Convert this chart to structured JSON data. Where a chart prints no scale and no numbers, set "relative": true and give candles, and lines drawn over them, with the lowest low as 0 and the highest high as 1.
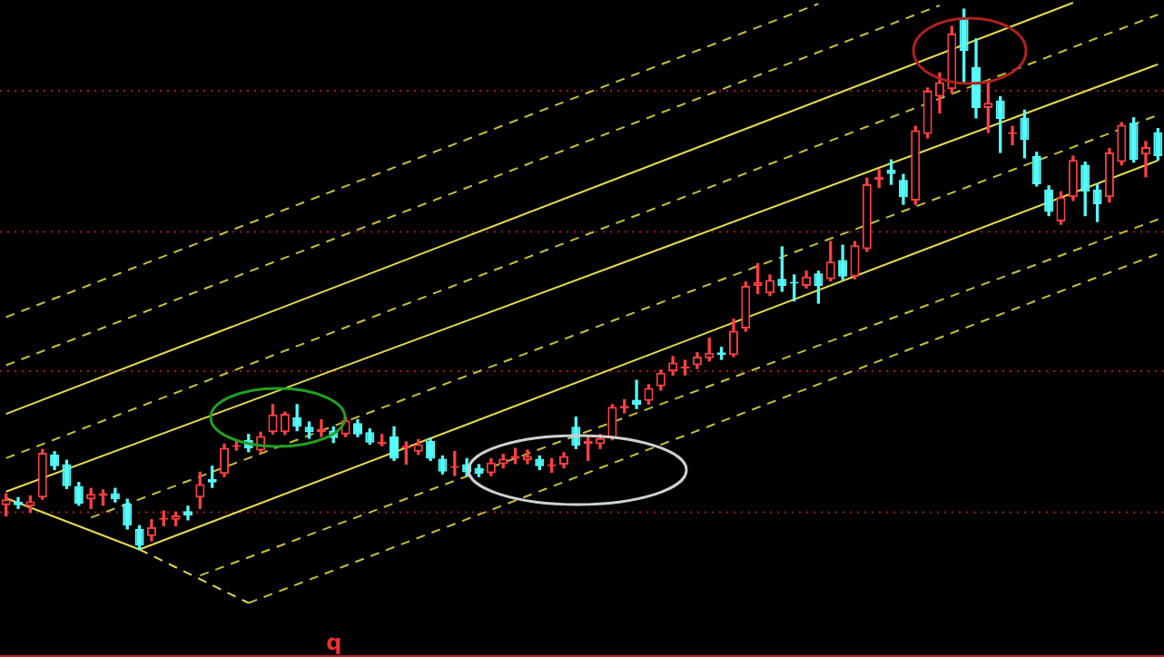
{
  "chart_data": {
    "type": "candlestick",
    "relative": true,
    "tick_labels": false,
    "legend": false,
    "ref_lines": [
      {
        "axis": "y",
        "value": 0.849,
        "color": "#a01c1c",
        "line_style": "dotted"
      },
      {
        "axis": "y",
        "value": 0.588,
        "color": "#a01c1c",
        "line_style": "dotted"
      },
      {
        "axis": "y",
        "value": 0.33,
        "color": "#a01c1c",
        "line_style": "dotted"
      },
      {
        "axis": "y",
        "value": 0.069,
        "color": "#a01c1c",
        "line_style": "dotted"
      }
    ],
    "marker": "none",
    "annotations": [
      "q"
    ],
    "categories": [
      null,
      null,
      null,
      null,
      null,
      null,
      null,
      null,
      null,
      null,
      null,
      null,
      null,
      null,
      null,
      null,
      null,
      null,
      null,
      null,
      null,
      null,
      null,
      null,
      null,
      null,
      null,
      null,
      null,
      null,
      null,
      null,
      null,
      null,
      null,
      null,
      null,
      null,
      null,
      null,
      null,
      null,
      null,
      null,
      null,
      null,
      null,
      null,
      null,
      null,
      null,
      null,
      null,
      null,
      null,
      null,
      null,
      null,
      null,
      null,
      null,
      null,
      null,
      null,
      null,
      null,
      null,
      null,
      null,
      null,
      null,
      null,
      null,
      null,
      null,
      null,
      null,
      null,
      null,
      null,
      null,
      null,
      null,
      null,
      null,
      null,
      null,
      null,
      null,
      null,
      null,
      null,
      null,
      null,
      null,
      null
    ],
    "ohlc": [
      [
        0.082,
        0.103,
        0.062,
        0.093
      ],
      [
        0.088,
        0.096,
        0.076,
        0.082
      ],
      [
        0.08,
        0.099,
        0.069,
        0.089
      ],
      [
        0.096,
        0.185,
        0.093,
        0.179
      ],
      [
        0.176,
        0.181,
        0.148,
        0.154
      ],
      [
        0.158,
        0.165,
        0.113,
        0.117
      ],
      [
        0.117,
        0.124,
        0.082,
        0.085
      ],
      [
        0.093,
        0.113,
        0.076,
        0.103
      ],
      [
        0.099,
        0.11,
        0.082,
        0.104
      ],
      [
        0.104,
        0.113,
        0.088,
        0.093
      ],
      [
        0.085,
        0.093,
        0.038,
        0.044
      ],
      [
        0.038,
        0.044,
        0,
        0.007
      ],
      [
        0.025,
        0.055,
        0.016,
        0.041
      ],
      [
        0.055,
        0.071,
        0.044,
        0.059
      ],
      [
        0.055,
        0.069,
        0.044,
        0.063
      ],
      [
        0.071,
        0.08,
        0.055,
        0.063
      ],
      [
        0.096,
        0.143,
        0.076,
        0.121
      ],
      [
        0.13,
        0.154,
        0.115,
        0.124
      ],
      [
        0.14,
        0.195,
        0.135,
        0.188
      ],
      [
        0.19,
        0.202,
        0.184,
        0.192
      ],
      [
        0.203,
        0.213,
        0.181,
        0.187
      ],
      [
        0.183,
        0.217,
        0.179,
        0.21
      ],
      [
        0.217,
        0.268,
        0.214,
        0.25
      ],
      [
        0.217,
        0.254,
        0.213,
        0.251
      ],
      [
        0.245,
        0.268,
        0.22,
        0.227
      ],
      [
        0.227,
        0.236,
        0.206,
        0.217
      ],
      [
        0.217,
        0.24,
        0.209,
        0.223
      ],
      [
        0.22,
        0.227,
        0.198,
        0.206
      ],
      [
        0.213,
        0.245,
        0.209,
        0.239
      ],
      [
        0.234,
        0.24,
        0.209,
        0.213
      ],
      [
        0.217,
        0.223,
        0.195,
        0.198
      ],
      [
        0.195,
        0.213,
        0.192,
        0.199
      ],
      [
        0.209,
        0.227,
        0.165,
        0.168
      ],
      [
        0.187,
        0.199,
        0.158,
        0.192
      ],
      [
        0.181,
        0.203,
        0.176,
        0.195
      ],
      [
        0.201,
        0.206,
        0.165,
        0.168
      ],
      [
        0.168,
        0.173,
        0.14,
        0.144
      ],
      [
        0.151,
        0.181,
        0.137,
        0.154
      ],
      [
        0.158,
        0.168,
        0.137,
        0.143
      ],
      [
        0.151,
        0.157,
        0.135,
        0.14
      ],
      [
        0.141,
        0.168,
        0.137,
        0.161
      ],
      [
        0.158,
        0.176,
        0.151,
        0.168
      ],
      [
        0.168,
        0.187,
        0.159,
        0.173
      ],
      [
        0.165,
        0.184,
        0.159,
        0.173
      ],
      [
        0.168,
        0.173,
        0.148,
        0.154
      ],
      [
        0.154,
        0.168,
        0.143,
        0.157
      ],
      [
        0.157,
        0.179,
        0.151,
        0.173
      ],
      [
        0.227,
        0.245,
        0.187,
        0.192
      ],
      [
        0.195,
        0.209,
        0.165,
        0.201
      ],
      [
        0.195,
        0.213,
        0.187,
        0.206
      ],
      [
        0.206,
        0.268,
        0.203,
        0.264
      ],
      [
        0.261,
        0.277,
        0.253,
        0.266
      ],
      [
        0.277,
        0.313,
        0.261,
        0.268
      ],
      [
        0.275,
        0.305,
        0.269,
        0.299
      ],
      [
        0.302,
        0.332,
        0.295,
        0.327
      ],
      [
        0.33,
        0.357,
        0.323,
        0.346
      ],
      [
        0.335,
        0.35,
        0.323,
        0.338
      ],
      [
        0.341,
        0.364,
        0.335,
        0.357
      ],
      [
        0.354,
        0.391,
        0.349,
        0.364
      ],
      [
        0.365,
        0.374,
        0.352,
        0.36
      ],
      [
        0.36,
        0.426,
        0.357,
        0.405
      ],
      [
        0.409,
        0.495,
        0.404,
        0.488
      ],
      [
        0.488,
        0.529,
        0.474,
        0.495
      ],
      [
        0.474,
        0.508,
        0.47,
        0.499
      ],
      [
        0.501,
        0.56,
        0.478,
        0.488
      ],
      [
        0.495,
        0.508,
        0.46,
        0.492
      ],
      [
        0.488,
        0.515,
        0.484,
        0.505
      ],
      [
        0.511,
        0.515,
        0.456,
        0.488
      ],
      [
        0.5,
        0.57,
        0.497,
        0.533
      ],
      [
        0.536,
        0.563,
        0.5,
        0.505
      ],
      [
        0.505,
        0.57,
        0.501,
        0.563
      ],
      [
        0.556,
        0.687,
        0.552,
        0.676
      ],
      [
        0.684,
        0.703,
        0.67,
        0.69
      ],
      [
        0.703,
        0.721,
        0.676,
        0.695
      ],
      [
        0.684,
        0.694,
        0.639,
        0.652
      ],
      [
        0.646,
        0.783,
        0.639,
        0.776
      ],
      [
        0.769,
        0.854,
        0.762,
        0.849
      ],
      [
        0.838,
        0.882,
        0.808,
        0.865
      ],
      [
        0.852,
        0.968,
        0.845,
        0.955
      ],
      [
        0.982,
        1,
        0.865,
        0.923
      ],
      [
        0.893,
        0.945,
        0.799,
        0.817
      ],
      [
        0.817,
        0.863,
        0.772,
        0.827
      ],
      [
        0.831,
        0.838,
        0.735,
        0.797
      ],
      [
        0.769,
        0.783,
        0.749,
        0.772
      ],
      [
        0.799,
        0.813,
        0.725,
        0.758
      ],
      [
        0.728,
        0.735,
        0.673,
        0.676
      ],
      [
        0.666,
        0.673,
        0.618,
        0.625
      ],
      [
        0.607,
        0.662,
        0.602,
        0.652
      ],
      [
        0.652,
        0.728,
        0.646,
        0.721
      ],
      [
        0.712,
        0.717,
        0.618,
        0.662
      ],
      [
        0.666,
        0.676,
        0.607,
        0.639
      ],
      [
        0.652,
        0.742,
        0.643,
        0.735
      ],
      [
        0.717,
        0.79,
        0.712,
        0.786
      ],
      [
        0.79,
        0.799,
        0.717,
        0.721
      ],
      [
        0.731,
        0.755,
        0.69,
        0.745
      ],
      [
        0.772,
        0.779,
        0.721,
        0.728
      ]
    ],
    "colors": [
      "#ff4040",
      "#54fcfc",
      "#ff4040",
      "#ff4040",
      "#54fcfc",
      "#54fcfc",
      "#54fcfc",
      "#ff4040",
      "#ff4040",
      "#54fcfc",
      "#54fcfc",
      "#54fcfc",
      "#ff4040",
      "#ff4040",
      "#ff4040",
      "#54fcfc",
      "#ff4040",
      "#54fcfc",
      "#ff4040",
      "#ff4040",
      "#54fcfc",
      "#ff4040",
      "#ff4040",
      "#ff4040",
      "#54fcfc",
      "#54fcfc",
      "#ff4040",
      "#54fcfc",
      "#ff4040",
      "#54fcfc",
      "#54fcfc",
      "#ff4040",
      "#54fcfc",
      "#ff4040",
      "#ff4040",
      "#54fcfc",
      "#54fcfc",
      "#ff4040",
      "#54fcfc",
      "#54fcfc",
      "#ff4040",
      "#ff4040",
      "#ff4040",
      "#ff4040",
      "#54fcfc",
      "#ff4040",
      "#ff4040",
      "#54fcfc",
      "#ff4040",
      "#ff4040",
      "#ff4040",
      "#ff4040",
      "#54fcfc",
      "#ff4040",
      "#ff4040",
      "#ff4040",
      "#ff4040",
      "#ff4040",
      "#ff4040",
      "#54fcfc",
      "#ff4040",
      "#ff4040",
      "#ff4040",
      "#ff4040",
      "#54fcfc",
      "#54fcfc",
      "#ff4040",
      "#54fcfc",
      "#ff4040",
      "#54fcfc",
      "#ff4040",
      "#ff4040",
      "#ff4040",
      "#54fcfc",
      "#54fcfc",
      "#ff4040",
      "#ff4040",
      "#ff4040",
      "#ff4040",
      "#54fcfc",
      "#54fcfc",
      "#ff4040",
      "#54fcfc",
      "#ff4040",
      "#54fcfc",
      "#54fcfc",
      "#54fcfc",
      "#ff4040",
      "#ff4040",
      "#54fcfc",
      "#54fcfc",
      "#ff4040",
      "#ff4040",
      "#54fcfc",
      "#ff4040",
      "#54fcfc"
    ],
    "series": [
      {
        "type": "line",
        "color": "#c9c13a",
        "line_style": "dashed",
        "values": [
          0.43,
          null,
          null,
          null,
          null,
          null,
          null,
          null,
          null,
          null,
          null,
          null,
          null,
          null,
          null,
          null,
          null,
          null,
          null,
          null,
          null,
          null,
          null,
          null,
          null,
          null,
          null,
          null,
          null,
          null,
          null,
          null,
          null,
          null,
          null,
          null,
          null,
          null,
          null,
          null,
          null,
          null,
          null,
          null,
          null,
          null,
          null,
          null,
          null,
          null,
          null,
          null,
          null,
          null,
          null,
          null,
          null,
          null,
          null,
          null,
          null,
          null,
          null,
          null,
          null,
          null,
          null,
          1.01,
          null,
          null,
          null,
          null,
          null,
          null,
          null,
          null,
          null,
          null,
          null,
          null,
          null,
          null,
          null,
          null,
          null,
          null,
          null,
          null,
          null,
          null,
          null,
          null,
          null,
          null,
          null,
          null
        ]
      },
      {
        "type": "line",
        "color": "#c9c13a",
        "line_style": "dashed",
        "values": [
          0.341,
          null,
          null,
          null,
          null,
          null,
          null,
          null,
          null,
          null,
          null,
          null,
          null,
          null,
          null,
          null,
          null,
          null,
          null,
          null,
          null,
          null,
          null,
          null,
          null,
          null,
          null,
          null,
          null,
          null,
          null,
          null,
          null,
          null,
          null,
          null,
          null,
          null,
          null,
          null,
          null,
          null,
          null,
          null,
          null,
          null,
          null,
          null,
          null,
          null,
          null,
          null,
          null,
          null,
          null,
          null,
          null,
          null,
          null,
          null,
          null,
          null,
          null,
          null,
          null,
          null,
          null,
          null,
          null,
          null,
          null,
          null,
          null,
          null,
          null,
          null,
          null,
          1.007,
          null,
          null,
          null,
          null,
          null,
          null,
          null,
          null,
          null,
          null,
          null,
          null,
          null,
          null,
          null,
          null,
          null,
          null
        ]
      },
      {
        "type": "line",
        "color": "#e6dc50",
        "line_style": "solid",
        "values": [
          0.251,
          null,
          null,
          null,
          null,
          null,
          null,
          null,
          null,
          null,
          null,
          null,
          null,
          null,
          null,
          null,
          null,
          null,
          null,
          null,
          null,
          null,
          null,
          null,
          null,
          null,
          null,
          null,
          null,
          null,
          null,
          null,
          null,
          null,
          null,
          null,
          null,
          null,
          null,
          null,
          null,
          null,
          null,
          null,
          null,
          null,
          null,
          null,
          null,
          null,
          null,
          null,
          null,
          null,
          null,
          null,
          null,
          null,
          null,
          null,
          null,
          null,
          null,
          null,
          null,
          null,
          null,
          null,
          null,
          null,
          null,
          null,
          null,
          null,
          null,
          null,
          null,
          null,
          null,
          null,
          null,
          null,
          null,
          null,
          null,
          null,
          null,
          null,
          1.012,
          null,
          null,
          null,
          null,
          null,
          null,
          null
        ]
      },
      {
        "type": "line",
        "color": "#c9c13a",
        "line_style": "dashed",
        "values": [
          0.169,
          null,
          null,
          null,
          null,
          null,
          null,
          null,
          null,
          null,
          null,
          null,
          null,
          null,
          null,
          null,
          null,
          null,
          null,
          null,
          null,
          null,
          null,
          null,
          null,
          null,
          null,
          null,
          null,
          null,
          null,
          null,
          null,
          null,
          null,
          null,
          null,
          null,
          null,
          null,
          null,
          null,
          null,
          null,
          null,
          null,
          null,
          null,
          null,
          null,
          null,
          null,
          null,
          null,
          null,
          null,
          null,
          null,
          null,
          null,
          null,
          null,
          null,
          null,
          null,
          null,
          null,
          null,
          null,
          null,
          null,
          null,
          null,
          null,
          null,
          null,
          null,
          null,
          null,
          null,
          null,
          null,
          null,
          null,
          null,
          null,
          null,
          null,
          null,
          null,
          null,
          null,
          null,
          null,
          null,
          0.99
        ]
      },
      {
        "type": "line",
        "color": "#e6dc50",
        "line_style": "solid",
        "values": [
          0.107,
          null,
          null,
          null,
          null,
          null,
          null,
          null,
          null,
          null,
          null,
          null,
          null,
          null,
          null,
          null,
          null,
          null,
          null,
          null,
          null,
          null,
          null,
          null,
          null,
          null,
          null,
          null,
          null,
          null,
          null,
          null,
          null,
          null,
          null,
          null,
          null,
          null,
          null,
          null,
          null,
          null,
          null,
          null,
          null,
          null,
          null,
          null,
          null,
          null,
          null,
          null,
          null,
          null,
          null,
          null,
          null,
          null,
          null,
          null,
          null,
          null,
          null,
          null,
          null,
          null,
          null,
          null,
          null,
          null,
          null,
          null,
          null,
          null,
          null,
          null,
          null,
          null,
          null,
          null,
          null,
          null,
          null,
          null,
          null,
          null,
          null,
          null,
          null,
          null,
          null,
          null,
          null,
          null,
          null,
          0.898
        ]
      },
      {
        "type": "line",
        "color": "#c9c13a",
        "line_style": "dashed",
        "values": [
          null,
          null,
          null,
          null,
          null,
          null,
          null,
          0.059,
          null,
          null,
          null,
          null,
          null,
          null,
          null,
          null,
          null,
          null,
          null,
          null,
          null,
          null,
          null,
          null,
          null,
          null,
          null,
          null,
          null,
          null,
          null,
          null,
          null,
          null,
          null,
          null,
          null,
          null,
          null,
          null,
          null,
          null,
          null,
          null,
          null,
          null,
          null,
          null,
          null,
          null,
          null,
          null,
          null,
          null,
          null,
          null,
          null,
          null,
          null,
          null,
          null,
          null,
          null,
          null,
          null,
          null,
          null,
          null,
          null,
          null,
          null,
          null,
          null,
          null,
          null,
          null,
          null,
          null,
          null,
          null,
          null,
          null,
          null,
          null,
          null,
          null,
          null,
          null,
          null,
          null,
          null,
          null,
          null,
          null,
          null,
          0.804
        ]
      },
      {
        "type": "line",
        "color": "#e6dc50",
        "line_style": "solid",
        "values": [
          null,
          null,
          null,
          null,
          null,
          null,
          null,
          null,
          null,
          null,
          null,
          0,
          null,
          null,
          null,
          null,
          null,
          null,
          null,
          null,
          null,
          null,
          null,
          null,
          null,
          null,
          null,
          null,
          null,
          null,
          null,
          null,
          null,
          null,
          null,
          null,
          null,
          null,
          null,
          null,
          null,
          null,
          null,
          null,
          null,
          null,
          null,
          null,
          null,
          null,
          null,
          null,
          null,
          null,
          null,
          null,
          null,
          null,
          null,
          null,
          null,
          null,
          null,
          null,
          null,
          null,
          null,
          null,
          null,
          null,
          null,
          null,
          null,
          null,
          null,
          null,
          null,
          null,
          null,
          null,
          null,
          null,
          null,
          null,
          null,
          null,
          null,
          null,
          null,
          null,
          null,
          null,
          null,
          null,
          null,
          0.72
        ]
      },
      {
        "type": "line",
        "color": "#c9c13a",
        "line_style": "dashed",
        "values": [
          null,
          null,
          null,
          null,
          null,
          null,
          null,
          null,
          null,
          null,
          null,
          null,
          null,
          null,
          null,
          null,
          -0.048,
          null,
          null,
          null,
          null,
          null,
          null,
          null,
          null,
          null,
          null,
          null,
          null,
          null,
          null,
          null,
          null,
          null,
          null,
          null,
          null,
          null,
          null,
          null,
          null,
          null,
          null,
          null,
          null,
          null,
          null,
          null,
          null,
          null,
          null,
          null,
          null,
          null,
          null,
          null,
          null,
          null,
          null,
          null,
          null,
          null,
          null,
          null,
          null,
          null,
          null,
          null,
          null,
          null,
          null,
          null,
          null,
          null,
          null,
          null,
          null,
          null,
          null,
          null,
          null,
          null,
          null,
          null,
          null,
          null,
          null,
          null,
          null,
          null,
          null,
          null,
          null,
          null,
          null,
          0.611
        ]
      },
      {
        "type": "line",
        "color": "#c9c13a",
        "line_style": "dashed",
        "values": [
          null,
          null,
          null,
          null,
          null,
          null,
          null,
          null,
          null,
          null,
          null,
          null,
          null,
          null,
          null,
          null,
          null,
          null,
          null,
          null,
          -0.099,
          null,
          null,
          null,
          null,
          null,
          null,
          null,
          null,
          null,
          null,
          null,
          null,
          null,
          null,
          null,
          null,
          null,
          null,
          null,
          null,
          null,
          null,
          null,
          null,
          null,
          null,
          null,
          null,
          null,
          null,
          null,
          null,
          null,
          null,
          null,
          null,
          null,
          null,
          null,
          null,
          null,
          null,
          null,
          null,
          null,
          null,
          null,
          null,
          null,
          null,
          null,
          null,
          null,
          null,
          null,
          null,
          null,
          null,
          null,
          null,
          null,
          null,
          null,
          null,
          null,
          null,
          null,
          null,
          null,
          null,
          null,
          null,
          null,
          null,
          0.547
        ]
      },
      {
        "type": "line",
        "color": "#e6dc50",
        "line_style": "solid",
        "values": [
          0.095,
          null,
          null,
          null,
          null,
          null,
          null,
          null,
          null,
          null,
          null,
          0,
          null,
          null,
          null,
          null,
          null,
          null,
          null,
          null,
          null,
          null,
          null,
          null,
          null,
          null,
          null,
          null,
          null,
          null,
          null,
          null,
          null,
          null,
          null,
          null,
          null,
          null,
          null,
          null,
          null,
          null,
          null,
          null,
          null,
          null,
          null,
          null,
          null,
          null,
          null,
          null,
          null,
          null,
          null,
          null,
          null,
          null,
          null,
          null,
          null,
          null,
          null,
          null,
          null,
          null,
          null,
          null,
          null,
          null,
          null,
          null,
          null,
          null,
          null,
          null,
          null,
          null,
          null,
          null,
          null,
          null,
          null,
          null,
          null,
          null,
          null,
          null,
          null,
          null,
          null,
          null,
          null,
          null,
          null,
          null
        ]
      },
      {
        "type": "line",
        "color": "#e6dc50",
        "line_style": "dashed",
        "values": [
          null,
          null,
          null,
          null,
          null,
          null,
          null,
          null,
          null,
          null,
          null,
          0,
          null,
          null,
          null,
          null,
          null,
          null,
          null,
          null,
          -0.099,
          null,
          null,
          null,
          null,
          null,
          null,
          null,
          null,
          null,
          null,
          null,
          null,
          null,
          null,
          null,
          null,
          null,
          null,
          null,
          null,
          null,
          null,
          null,
          null,
          null,
          null,
          null,
          null,
          null,
          null,
          null,
          null,
          null,
          null,
          null,
          null,
          null,
          null,
          null,
          null,
          null,
          null,
          null,
          null,
          null,
          null,
          null,
          null,
          null,
          null,
          null,
          null,
          null,
          null,
          null,
          null,
          null,
          null,
          null,
          null,
          null,
          null,
          null,
          null,
          null,
          null,
          null,
          null,
          null,
          null,
          null,
          null,
          null,
          null,
          null
        ]
      }
    ]
  }
}
